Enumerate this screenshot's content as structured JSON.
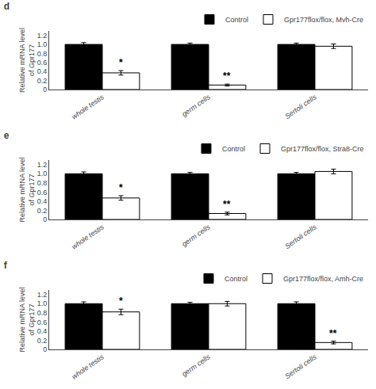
{
  "chart_data": [
    {
      "type": "bar",
      "title": "d",
      "categories": [
        "whole testis",
        "germ cells",
        "Sertoli cells"
      ],
      "series": [
        {
          "name": "Control",
          "color": "#000000",
          "values": [
            1.0,
            1.0,
            1.0
          ],
          "errors": [
            0.04,
            0.03,
            0.03
          ]
        },
        {
          "name": "Gpr177flox/flox, Mvh-Cre",
          "color": "#ffffff",
          "values": [
            0.37,
            0.1,
            0.96
          ],
          "errors": [
            0.05,
            0.02,
            0.05
          ]
        }
      ],
      "ylabel": "Relative mRNA level\nof Gpr177",
      "ylim": [
        0,
        1.3
      ],
      "yticks": [
        0,
        0.2,
        0.4,
        0.6,
        0.8,
        {
          "value": 1.0,
          "label": "1.0"
        },
        1.2
      ],
      "grid": false,
      "legend": "upper right",
      "annotations": [
        {
          "category": "whole testis",
          "series": "Gpr177flox/flox, Mvh-Cre",
          "text": "*"
        },
        {
          "category": "germ cells",
          "series": "Gpr177flox/flox, Mvh-Cre",
          "text": "**"
        }
      ]
    },
    {
      "type": "bar",
      "title": "e",
      "categories": [
        "whole testis",
        "germ cells",
        "Sertoli cells"
      ],
      "series": [
        {
          "name": "Control",
          "color": "#000000",
          "values": [
            1.0,
            1.0,
            1.0
          ],
          "errors": [
            0.04,
            0.03,
            0.03
          ]
        },
        {
          "name": "Gpr177flox/flox, Stra8-Cre",
          "color": "#ffffff",
          "values": [
            0.47,
            0.13,
            1.05
          ],
          "errors": [
            0.05,
            0.03,
            0.05
          ]
        }
      ],
      "ylabel": "Relative mRNA level\nof Gpr177",
      "ylim": [
        0,
        1.3
      ],
      "yticks": [
        0,
        0.2,
        0.4,
        0.6,
        0.8,
        {
          "value": 1.0,
          "label": "1.0"
        },
        1.2
      ],
      "grid": false,
      "legend": "upper right",
      "annotations": [
        {
          "category": "whole testis",
          "series": "Gpr177flox/flox, Stra8-Cre",
          "text": "*"
        },
        {
          "category": "germ cells",
          "series": "Gpr177flox/flox, Stra8-Cre",
          "text": "**"
        }
      ]
    },
    {
      "type": "bar",
      "title": "f",
      "categories": [
        "whole testis",
        "germ cells",
        "Sertoli cells"
      ],
      "series": [
        {
          "name": "Control",
          "color": "#000000",
          "values": [
            1.0,
            1.0,
            1.0
          ],
          "errors": [
            0.04,
            0.03,
            0.04
          ]
        },
        {
          "name": "Gpr177flox/flox, Amh-Cre",
          "color": "#ffffff",
          "values": [
            0.82,
            1.0,
            0.15
          ],
          "errors": [
            0.06,
            0.05,
            0.03
          ]
        }
      ],
      "ylabel": "Relative mRNA level\nof Gpr177",
      "ylim": [
        0,
        1.3
      ],
      "yticks": [
        0,
        0.2,
        0.4,
        0.6,
        0.8,
        {
          "value": 1.0,
          "label": "1.0"
        },
        1.2
      ],
      "grid": false,
      "legend": "upper right",
      "annotations": [
        {
          "category": "whole testis",
          "series": "Gpr177flox/flox, Amh-Cre",
          "text": "*"
        },
        {
          "category": "Sertoli cells",
          "series": "Gpr177flox/flox, Amh-Cre",
          "text": "**"
        }
      ]
    }
  ]
}
